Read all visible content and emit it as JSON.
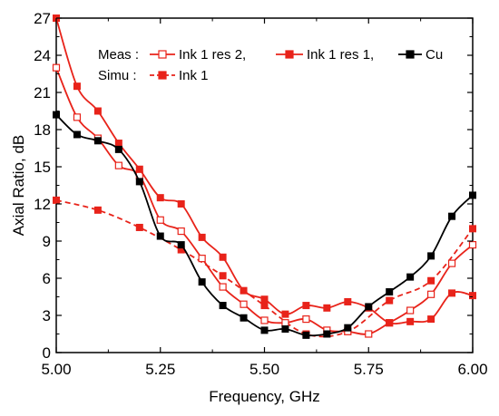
{
  "chart_data": {
    "type": "line",
    "xlabel": "Frequency, GHz",
    "ylabel": "Axial Ratio, dB",
    "xlim": [
      5.0,
      6.0
    ],
    "ylim": [
      0,
      27
    ],
    "xticks": [
      "5.00",
      "5.25",
      "5.50",
      "5.75",
      "6.00"
    ],
    "xtick_values": [
      5.0,
      5.25,
      5.5,
      5.75,
      6.0
    ],
    "yticks": [
      "0",
      "3",
      "6",
      "9",
      "12",
      "15",
      "18",
      "21",
      "24",
      "27"
    ],
    "ytick_values": [
      0,
      3,
      6,
      9,
      12,
      15,
      18,
      21,
      24,
      27
    ],
    "legend": {
      "meas_label": "Meas :",
      "simu_label": "Simu :",
      "placement": "top"
    },
    "series": [
      {
        "name": "Ink 1 res 2,",
        "group": "meas",
        "color": "#e8231a",
        "marker": "square-open",
        "line": "solid",
        "x": [
          5.0,
          5.05,
          5.1,
          5.15,
          5.2,
          5.25,
          5.3,
          5.35,
          5.4,
          5.45,
          5.5,
          5.55,
          5.6,
          5.65,
          5.7,
          5.75,
          5.8,
          5.85,
          5.9,
          5.95,
          6.0
        ],
        "y": [
          23.0,
          19.0,
          17.3,
          15.1,
          14.3,
          10.7,
          9.8,
          7.6,
          5.3,
          3.9,
          2.6,
          2.4,
          2.7,
          1.8,
          1.7,
          1.5,
          2.4,
          3.4,
          4.7,
          7.2,
          8.7
        ]
      },
      {
        "name": "Ink 1 res 1,",
        "group": "meas",
        "color": "#e8231a",
        "marker": "square-filled",
        "line": "solid",
        "x": [
          5.0,
          5.05,
          5.1,
          5.15,
          5.2,
          5.25,
          5.3,
          5.35,
          5.4,
          5.45,
          5.5,
          5.55,
          5.6,
          5.65,
          5.7,
          5.75,
          5.8,
          5.85,
          5.9,
          5.95,
          6.0
        ],
        "y": [
          27.0,
          21.5,
          19.5,
          16.9,
          14.8,
          12.5,
          12.0,
          9.3,
          7.7,
          5.0,
          4.3,
          3.1,
          3.8,
          3.6,
          4.1,
          3.6,
          2.4,
          2.5,
          2.7,
          4.8,
          4.6
        ]
      },
      {
        "name": "Cu",
        "group": "meas",
        "color": "#000000",
        "marker": "square-filled",
        "line": "solid",
        "x": [
          5.0,
          5.05,
          5.1,
          5.15,
          5.2,
          5.25,
          5.3,
          5.35,
          5.4,
          5.45,
          5.5,
          5.55,
          5.6,
          5.65,
          5.7,
          5.75,
          5.8,
          5.85,
          5.9,
          5.95,
          6.0
        ],
        "y": [
          19.2,
          17.6,
          17.1,
          16.4,
          13.8,
          9.4,
          8.7,
          5.7,
          3.8,
          2.8,
          1.8,
          1.9,
          1.4,
          1.5,
          2.0,
          3.7,
          4.9,
          6.1,
          7.8,
          11.0,
          12.7
        ]
      },
      {
        "name": "Ink 1",
        "group": "simu",
        "color": "#e8231a",
        "marker": "square-filled",
        "line": "dashed",
        "x": [
          5.0,
          5.1,
          5.2,
          5.3,
          5.4,
          5.5,
          5.6,
          5.7,
          5.8,
          5.9,
          6.0
        ],
        "y": [
          12.3,
          11.5,
          10.1,
          8.3,
          6.2,
          3.8,
          1.5,
          1.7,
          4.2,
          5.8,
          10.0
        ]
      }
    ]
  }
}
